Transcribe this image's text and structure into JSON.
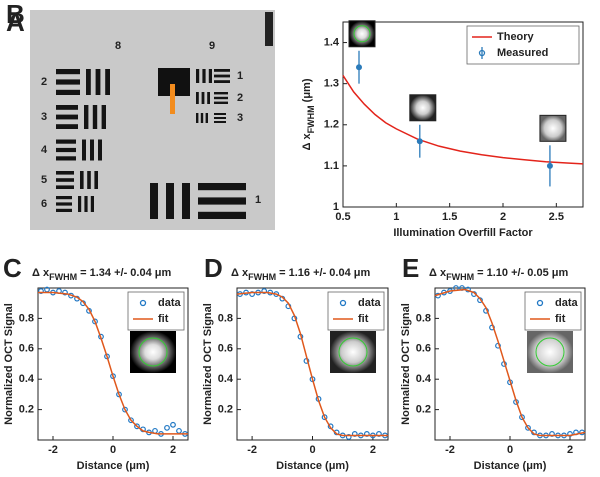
{
  "panel_a": {
    "panel_label": "A",
    "element_labels": [
      "8",
      "9"
    ],
    "group8_labels": [
      "2",
      "3",
      "4",
      "5",
      "6",
      "1"
    ],
    "group9_labels": [
      "1",
      "2",
      "3"
    ]
  },
  "chart_data": [
    {
      "type": "line",
      "panel_label": "B",
      "xlabel": "Illumination Overfill Factor",
      "ylabel": [
        "Δ x",
        "FWHM",
        " (μm)"
      ],
      "xlim": [
        0.5,
        2.75
      ],
      "ylim": [
        1,
        1.45
      ],
      "xticks": [
        0.5,
        1,
        1.5,
        2,
        2.5
      ],
      "yticks": [
        1,
        1.1,
        1.2,
        1.3,
        1.4
      ],
      "legend": "upper right",
      "series": [
        {
          "name": "Theory",
          "type": "line",
          "color": "#e3241b",
          "x": [
            0.5,
            0.6,
            0.7,
            0.8,
            0.9,
            1.0,
            1.2,
            1.4,
            1.6,
            1.8,
            2.0,
            2.2,
            2.4,
            2.6,
            2.75
          ],
          "values": [
            1.32,
            1.28,
            1.25,
            1.225,
            1.205,
            1.19,
            1.165,
            1.148,
            1.136,
            1.127,
            1.12,
            1.115,
            1.11,
            1.107,
            1.105
          ]
        },
        {
          "name": "Measured",
          "type": "errorbar",
          "color": "#2b7bba",
          "x": [
            0.65,
            1.22,
            2.44
          ],
          "values": [
            1.34,
            1.16,
            1.1
          ],
          "errors": [
            0.04,
            0.04,
            0.05
          ]
        }
      ]
    },
    {
      "type": "line",
      "panel_label": "C",
      "title": [
        "Δ x",
        "FWHM",
        " = 1.34 +/- 0.04  μm"
      ],
      "xlabel": "Distance (μm)",
      "ylabel": "Normalized OCT Signal",
      "xlim": [
        -2.5,
        2.5
      ],
      "ylim": [
        0,
        1
      ],
      "xticks": [
        -2,
        0,
        2
      ],
      "yticks": [
        0.2,
        0.4,
        0.6,
        0.8
      ],
      "legend": "upper right",
      "series": [
        {
          "name": "data",
          "type": "scatter",
          "color": "#1f77c4",
          "x": [
            -2.4,
            -2.2,
            -2.0,
            -1.8,
            -1.6,
            -1.4,
            -1.2,
            -1.0,
            -0.8,
            -0.6,
            -0.4,
            -0.2,
            0,
            0.2,
            0.4,
            0.6,
            0.8,
            1.0,
            1.2,
            1.4,
            1.6,
            1.8,
            2.0,
            2.2,
            2.4
          ],
          "values": [
            0.98,
            0.99,
            0.97,
            0.98,
            0.97,
            0.95,
            0.93,
            0.9,
            0.85,
            0.78,
            0.68,
            0.55,
            0.42,
            0.3,
            0.2,
            0.13,
            0.09,
            0.07,
            0.05,
            0.06,
            0.04,
            0.08,
            0.1,
            0.06,
            0.04
          ]
        },
        {
          "name": "fit",
          "type": "line",
          "color": "#e0581c",
          "x": [
            -2.5,
            -2.0,
            -1.5,
            -1.2,
            -1.0,
            -0.8,
            -0.6,
            -0.4,
            -0.2,
            0,
            0.2,
            0.4,
            0.6,
            0.8,
            1.0,
            1.2,
            1.5,
            2.0,
            2.5
          ],
          "values": [
            0.97,
            0.97,
            0.96,
            0.94,
            0.91,
            0.86,
            0.78,
            0.67,
            0.55,
            0.42,
            0.3,
            0.2,
            0.13,
            0.09,
            0.06,
            0.05,
            0.04,
            0.04,
            0.04
          ]
        }
      ]
    },
    {
      "type": "line",
      "panel_label": "D",
      "title": [
        "Δ x",
        "FWHM",
        " = 1.16 +/- 0.04  μm"
      ],
      "xlabel": "Distance (μm)",
      "ylabel": "Normalized OCT Signal",
      "xlim": [
        -2.5,
        2.5
      ],
      "ylim": [
        0,
        1
      ],
      "xticks": [
        -2,
        0,
        2
      ],
      "yticks": [
        0.2,
        0.4,
        0.6,
        0.8
      ],
      "legend": "upper right",
      "series": [
        {
          "name": "data",
          "type": "scatter",
          "color": "#1f77c4",
          "x": [
            -2.4,
            -2.2,
            -2.0,
            -1.8,
            -1.6,
            -1.4,
            -1.2,
            -1.0,
            -0.8,
            -0.6,
            -0.4,
            -0.2,
            0,
            0.2,
            0.4,
            0.6,
            0.8,
            1.0,
            1.2,
            1.4,
            1.6,
            1.8,
            2.0,
            2.2,
            2.4
          ],
          "values": [
            0.96,
            0.97,
            0.96,
            0.97,
            0.98,
            0.97,
            0.96,
            0.93,
            0.88,
            0.8,
            0.68,
            0.52,
            0.4,
            0.27,
            0.15,
            0.09,
            0.05,
            0.03,
            0.02,
            0.04,
            0.03,
            0.04,
            0.03,
            0.04,
            0.03
          ]
        },
        {
          "name": "fit",
          "type": "line",
          "color": "#e0581c",
          "x": [
            -2.5,
            -2.0,
            -1.5,
            -1.2,
            -1.0,
            -0.8,
            -0.6,
            -0.4,
            -0.2,
            0,
            0.2,
            0.4,
            0.6,
            0.8,
            1.0,
            1.2,
            1.5,
            2.0,
            2.5
          ],
          "values": [
            0.96,
            0.97,
            0.97,
            0.96,
            0.94,
            0.9,
            0.82,
            0.7,
            0.55,
            0.4,
            0.26,
            0.15,
            0.08,
            0.04,
            0.03,
            0.03,
            0.03,
            0.03,
            0.03
          ]
        }
      ]
    },
    {
      "type": "line",
      "panel_label": "E",
      "title": [
        "Δ x",
        "FWHM",
        " = 1.10 +/- 0.05  μm"
      ],
      "xlabel": "Distance (μm)",
      "ylabel": "Normalized OCT Signal",
      "xlim": [
        -2.5,
        2.5
      ],
      "ylim": [
        0,
        1
      ],
      "xticks": [
        -2,
        0,
        2
      ],
      "yticks": [
        0.2,
        0.4,
        0.6,
        0.8
      ],
      "legend": "upper right",
      "series": [
        {
          "name": "data",
          "type": "scatter",
          "color": "#1f77c4",
          "x": [
            -2.4,
            -2.2,
            -2.0,
            -1.8,
            -1.6,
            -1.4,
            -1.2,
            -1.0,
            -0.8,
            -0.6,
            -0.4,
            -0.2,
            0,
            0.2,
            0.4,
            0.6,
            0.8,
            1.0,
            1.2,
            1.4,
            1.6,
            1.8,
            2.0,
            2.2,
            2.4
          ],
          "values": [
            0.95,
            0.97,
            0.98,
            1.0,
            1.0,
            0.99,
            0.96,
            0.92,
            0.85,
            0.74,
            0.62,
            0.5,
            0.38,
            0.25,
            0.15,
            0.08,
            0.05,
            0.03,
            0.03,
            0.04,
            0.03,
            0.03,
            0.04,
            0.05,
            0.05
          ]
        },
        {
          "name": "fit",
          "type": "line",
          "color": "#e0581c",
          "x": [
            -2.5,
            -2.0,
            -1.5,
            -1.2,
            -1.0,
            -0.8,
            -0.6,
            -0.4,
            -0.2,
            0,
            0.2,
            0.4,
            0.6,
            0.8,
            1.0,
            1.2,
            1.5,
            2.0,
            2.5
          ],
          "values": [
            0.95,
            0.98,
            0.99,
            0.97,
            0.93,
            0.87,
            0.77,
            0.65,
            0.52,
            0.39,
            0.26,
            0.15,
            0.08,
            0.04,
            0.03,
            0.03,
            0.03,
            0.03,
            0.05
          ]
        }
      ]
    }
  ]
}
